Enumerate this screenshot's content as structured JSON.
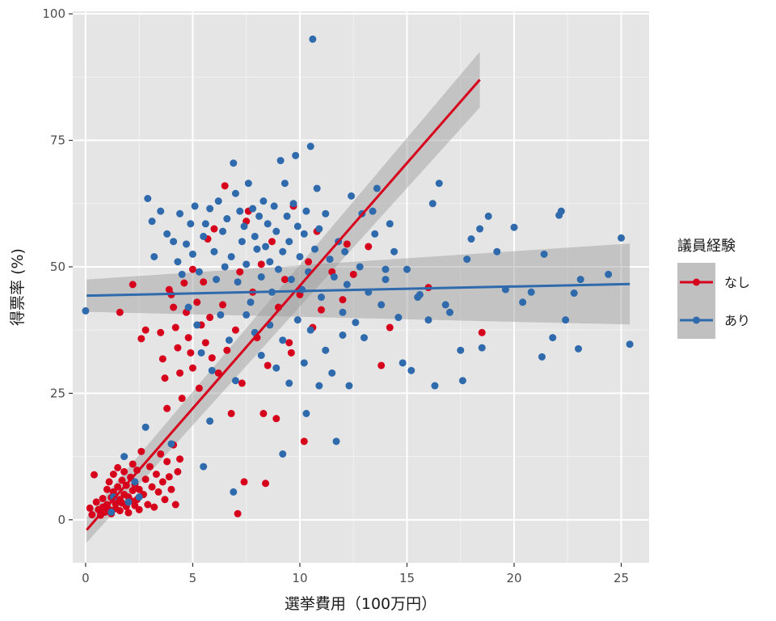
{
  "chart_data": {
    "type": "scatter",
    "xlabel": "選挙費用（100万円）",
    "ylabel": "得票率 (%)",
    "xlim": [
      -0.6,
      26.3
    ],
    "ylim": [
      -8.5,
      100.5
    ],
    "xticks": [
      0,
      5,
      10,
      15,
      20,
      25
    ],
    "yticks": [
      0,
      25,
      50,
      75,
      100
    ],
    "grid": true,
    "legend": {
      "title": "議員経験",
      "position": "right"
    },
    "series": [
      {
        "name": "なし",
        "color": "#d7001c",
        "fit": {
          "x0": 0.05,
          "y0": -2.0,
          "x1": 18.4,
          "y1": 87.0,
          "ci_width_start": 2.5,
          "ci_width_end": 5.5
        },
        "points": [
          [
            0.2,
            2.3
          ],
          [
            0.3,
            1.0
          ],
          [
            0.4,
            8.9
          ],
          [
            0.5,
            3.5
          ],
          [
            0.6,
            2.0
          ],
          [
            0.7,
            0.9
          ],
          [
            0.8,
            4.2
          ],
          [
            0.8,
            2.5
          ],
          [
            0.9,
            1.5
          ],
          [
            1.0,
            6.0
          ],
          [
            1.0,
            3.0
          ],
          [
            1.1,
            2.0
          ],
          [
            1.1,
            7.5
          ],
          [
            1.2,
            4.4
          ],
          [
            1.2,
            1.2
          ],
          [
            1.3,
            5.5
          ],
          [
            1.3,
            9.0
          ],
          [
            1.4,
            3.2
          ],
          [
            1.4,
            2.2
          ],
          [
            1.5,
            6.5
          ],
          [
            1.5,
            10.3
          ],
          [
            1.6,
            4.0
          ],
          [
            1.6,
            1.8
          ],
          [
            1.7,
            7.8
          ],
          [
            1.7,
            3.3
          ],
          [
            1.8,
            5.0
          ],
          [
            1.8,
            9.5
          ],
          [
            1.9,
            2.6
          ],
          [
            1.9,
            6.8
          ],
          [
            2.0,
            4.5
          ],
          [
            2.0,
            1.4
          ],
          [
            2.1,
            8.4
          ],
          [
            2.1,
            3.8
          ],
          [
            2.2,
            5.8
          ],
          [
            2.2,
            11.0
          ],
          [
            2.3,
            2.8
          ],
          [
            2.3,
            7.0
          ],
          [
            2.4,
            4.0
          ],
          [
            2.4,
            9.8
          ],
          [
            2.5,
            6.0
          ],
          [
            2.5,
            2.0
          ],
          [
            2.6,
            13.5
          ],
          [
            2.7,
            5.0
          ],
          [
            2.8,
            8.0
          ],
          [
            2.9,
            3.0
          ],
          [
            3.0,
            10.5
          ],
          [
            3.1,
            6.5
          ],
          [
            3.2,
            2.5
          ],
          [
            3.3,
            9.0
          ],
          [
            3.4,
            5.5
          ],
          [
            3.5,
            13.0
          ],
          [
            3.6,
            7.5
          ],
          [
            3.7,
            4.0
          ],
          [
            3.8,
            11.5
          ],
          [
            3.9,
            8.5
          ],
          [
            4.0,
            6.0
          ],
          [
            4.1,
            14.8
          ],
          [
            4.2,
            3.0
          ],
          [
            4.3,
            9.5
          ],
          [
            4.4,
            12.0
          ],
          [
            1.6,
            41.0
          ],
          [
            2.2,
            46.5
          ],
          [
            2.6,
            35.8
          ],
          [
            2.8,
            37.5
          ],
          [
            3.5,
            37.0
          ],
          [
            3.6,
            31.8
          ],
          [
            3.7,
            28.0
          ],
          [
            3.8,
            22.0
          ],
          [
            3.9,
            45.5
          ],
          [
            4.0,
            44.5
          ],
          [
            4.1,
            42.0
          ],
          [
            4.2,
            38.0
          ],
          [
            4.3,
            34.0
          ],
          [
            4.4,
            29.0
          ],
          [
            4.5,
            24.0
          ],
          [
            4.6,
            46.8
          ],
          [
            4.7,
            41.0
          ],
          [
            4.8,
            36.0
          ],
          [
            4.9,
            33.0
          ],
          [
            5.0,
            49.5
          ],
          [
            5.0,
            30.0
          ],
          [
            5.2,
            43.0
          ],
          [
            5.3,
            26.0
          ],
          [
            5.4,
            38.5
          ],
          [
            5.5,
            47.0
          ],
          [
            5.6,
            35.0
          ],
          [
            5.7,
            55.5
          ],
          [
            5.8,
            40.0
          ],
          [
            5.9,
            32.0
          ],
          [
            6.0,
            57.5
          ],
          [
            6.2,
            29.0
          ],
          [
            6.4,
            42.5
          ],
          [
            6.6,
            33.5
          ],
          [
            6.8,
            21.0
          ],
          [
            7.0,
            37.5
          ],
          [
            7.2,
            49.0
          ],
          [
            7.3,
            27.0
          ],
          [
            7.5,
            59.0
          ],
          [
            7.8,
            45.0
          ],
          [
            8.0,
            36.0
          ],
          [
            8.2,
            50.5
          ],
          [
            8.4,
            7.2
          ],
          [
            8.5,
            30.5
          ],
          [
            8.7,
            55.0
          ],
          [
            8.9,
            20.0
          ],
          [
            9.0,
            42.0
          ],
          [
            9.3,
            47.5
          ],
          [
            9.5,
            35.0
          ],
          [
            9.7,
            62.0
          ],
          [
            10.0,
            44.5
          ],
          [
            10.2,
            15.5
          ],
          [
            10.4,
            51.0
          ],
          [
            10.6,
            38.0
          ],
          [
            10.8,
            57.0
          ],
          [
            11.0,
            41.5
          ],
          [
            11.5,
            49.0
          ],
          [
            12.0,
            43.5
          ],
          [
            12.2,
            54.5
          ],
          [
            12.5,
            48.5
          ],
          [
            13.2,
            54.0
          ],
          [
            13.8,
            30.5
          ],
          [
            14.2,
            38.0
          ],
          [
            16.0,
            45.9
          ],
          [
            18.5,
            37.0
          ],
          [
            7.1,
            1.2
          ],
          [
            7.4,
            7.5
          ],
          [
            8.3,
            21.0
          ],
          [
            6.5,
            66.0
          ],
          [
            7.6,
            61.0
          ],
          [
            9.6,
            33.0
          ]
        ]
      },
      {
        "name": "あり",
        "color": "#2e6aac",
        "fit": {
          "x0": 0.05,
          "y0": 44.3,
          "x1": 25.4,
          "y1": 46.6,
          "ci_width_start": 3.2,
          "ci_width_end": 8.0
        },
        "points": [
          [
            0.0,
            41.3
          ],
          [
            1.3,
            4.5
          ],
          [
            1.8,
            12.5
          ],
          [
            2.0,
            3.5
          ],
          [
            2.3,
            7.5
          ],
          [
            2.8,
            18.3
          ],
          [
            2.9,
            63.5
          ],
          [
            3.1,
            59.0
          ],
          [
            3.2,
            52.0
          ],
          [
            3.5,
            61.0
          ],
          [
            3.8,
            56.5
          ],
          [
            4.1,
            55.0
          ],
          [
            4.3,
            51.0
          ],
          [
            4.4,
            60.5
          ],
          [
            4.5,
            48.5
          ],
          [
            4.7,
            54.5
          ],
          [
            4.9,
            58.5
          ],
          [
            5.0,
            52.5
          ],
          [
            5.1,
            62.0
          ],
          [
            5.3,
            49.0
          ],
          [
            5.5,
            56.0
          ],
          [
            5.6,
            58.5
          ],
          [
            5.8,
            61.5
          ],
          [
            6.0,
            53.0
          ],
          [
            6.1,
            47.5
          ],
          [
            6.2,
            63.0
          ],
          [
            6.4,
            57.0
          ],
          [
            6.5,
            50.0
          ],
          [
            6.6,
            59.5
          ],
          [
            6.8,
            52.0
          ],
          [
            6.9,
            70.5
          ],
          [
            7.0,
            64.5
          ],
          [
            7.1,
            47.0
          ],
          [
            7.2,
            61.0
          ],
          [
            7.3,
            55.0
          ],
          [
            7.4,
            58.0
          ],
          [
            7.5,
            50.5
          ],
          [
            7.6,
            66.5
          ],
          [
            7.7,
            43.0
          ],
          [
            7.8,
            61.5
          ],
          [
            7.9,
            56.0
          ],
          [
            8.0,
            53.5
          ],
          [
            8.1,
            60.0
          ],
          [
            8.2,
            48.0
          ],
          [
            8.3,
            63.0
          ],
          [
            8.4,
            54.0
          ],
          [
            8.5,
            58.5
          ],
          [
            8.6,
            51.0
          ],
          [
            8.7,
            45.0
          ],
          [
            8.8,
            62.0
          ],
          [
            8.9,
            57.0
          ],
          [
            9.0,
            49.5
          ],
          [
            9.1,
            71.0
          ],
          [
            9.2,
            53.0
          ],
          [
            9.3,
            66.5
          ],
          [
            9.4,
            60.0
          ],
          [
            9.5,
            55.0
          ],
          [
            9.6,
            47.5
          ],
          [
            9.7,
            62.5
          ],
          [
            9.8,
            72.0
          ],
          [
            9.9,
            58.0
          ],
          [
            10.0,
            52.0
          ],
          [
            10.1,
            45.5
          ],
          [
            10.2,
            56.5
          ],
          [
            10.3,
            61.0
          ],
          [
            10.4,
            49.0
          ],
          [
            10.5,
            73.8
          ],
          [
            10.6,
            95.0
          ],
          [
            10.7,
            53.5
          ],
          [
            10.8,
            65.5
          ],
          [
            10.9,
            57.5
          ],
          [
            11.0,
            44.0
          ],
          [
            11.2,
            60.5
          ],
          [
            11.4,
            51.5
          ],
          [
            11.6,
            48.0
          ],
          [
            11.8,
            55.0
          ],
          [
            12.0,
            41.0
          ],
          [
            12.2,
            46.5
          ],
          [
            12.4,
            64.0
          ],
          [
            12.6,
            39.0
          ],
          [
            12.8,
            50.0
          ],
          [
            13.0,
            36.0
          ],
          [
            13.2,
            45.0
          ],
          [
            13.4,
            61.0
          ],
          [
            13.6,
            65.5
          ],
          [
            13.8,
            42.5
          ],
          [
            14.0,
            47.5
          ],
          [
            14.2,
            58.5
          ],
          [
            14.4,
            53.0
          ],
          [
            14.6,
            40.0
          ],
          [
            15.0,
            49.5
          ],
          [
            15.5,
            44.0
          ],
          [
            16.0,
            39.5
          ],
          [
            16.2,
            62.5
          ],
          [
            16.5,
            66.5
          ],
          [
            17.0,
            41.0
          ],
          [
            17.5,
            33.5
          ],
          [
            17.8,
            51.5
          ],
          [
            18.0,
            55.5
          ],
          [
            18.4,
            57.5
          ],
          [
            18.8,
            60.0
          ],
          [
            19.2,
            53.0
          ],
          [
            19.6,
            45.5
          ],
          [
            20.0,
            57.8
          ],
          [
            20.4,
            43.0
          ],
          [
            20.8,
            45.0
          ],
          [
            21.4,
            52.5
          ],
          [
            21.3,
            32.2
          ],
          [
            21.8,
            36.0
          ],
          [
            22.2,
            61.0
          ],
          [
            22.1,
            60.2
          ],
          [
            22.4,
            39.5
          ],
          [
            22.8,
            44.8
          ],
          [
            23.1,
            47.5
          ],
          [
            23.0,
            33.8
          ],
          [
            24.4,
            48.5
          ],
          [
            25.0,
            55.7
          ],
          [
            25.4,
            34.7
          ],
          [
            4.8,
            42.0
          ],
          [
            5.2,
            38.5
          ],
          [
            5.4,
            33.0
          ],
          [
            5.9,
            29.5
          ],
          [
            6.3,
            40.5
          ],
          [
            6.7,
            35.5
          ],
          [
            7.0,
            27.5
          ],
          [
            7.5,
            40.5
          ],
          [
            7.9,
            37.0
          ],
          [
            8.2,
            32.5
          ],
          [
            8.6,
            38.5
          ],
          [
            8.9,
            30.0
          ],
          [
            9.2,
            35.5
          ],
          [
            9.5,
            27.0
          ],
          [
            9.9,
            39.5
          ],
          [
            10.2,
            31.0
          ],
          [
            10.5,
            37.5
          ],
          [
            10.9,
            26.5
          ],
          [
            11.2,
            33.5
          ],
          [
            11.5,
            29.0
          ],
          [
            12.0,
            36.5
          ],
          [
            12.3,
            26.5
          ],
          [
            11.7,
            15.5
          ],
          [
            9.2,
            13.0
          ],
          [
            10.3,
            21.0
          ],
          [
            5.5,
            10.5
          ],
          [
            5.8,
            19.5
          ],
          [
            6.9,
            5.5
          ],
          [
            4.0,
            15.0
          ],
          [
            2.5,
            4.5
          ],
          [
            1.2,
            1.5
          ],
          [
            14.8,
            31.0
          ],
          [
            15.2,
            29.5
          ],
          [
            16.3,
            26.5
          ],
          [
            17.6,
            27.5
          ],
          [
            18.5,
            34.0
          ],
          [
            16.8,
            42.5
          ],
          [
            15.6,
            44.5
          ],
          [
            14.0,
            49.5
          ],
          [
            13.5,
            56.5
          ],
          [
            12.9,
            60.5
          ],
          [
            12.1,
            53.0
          ]
        ]
      }
    ]
  }
}
